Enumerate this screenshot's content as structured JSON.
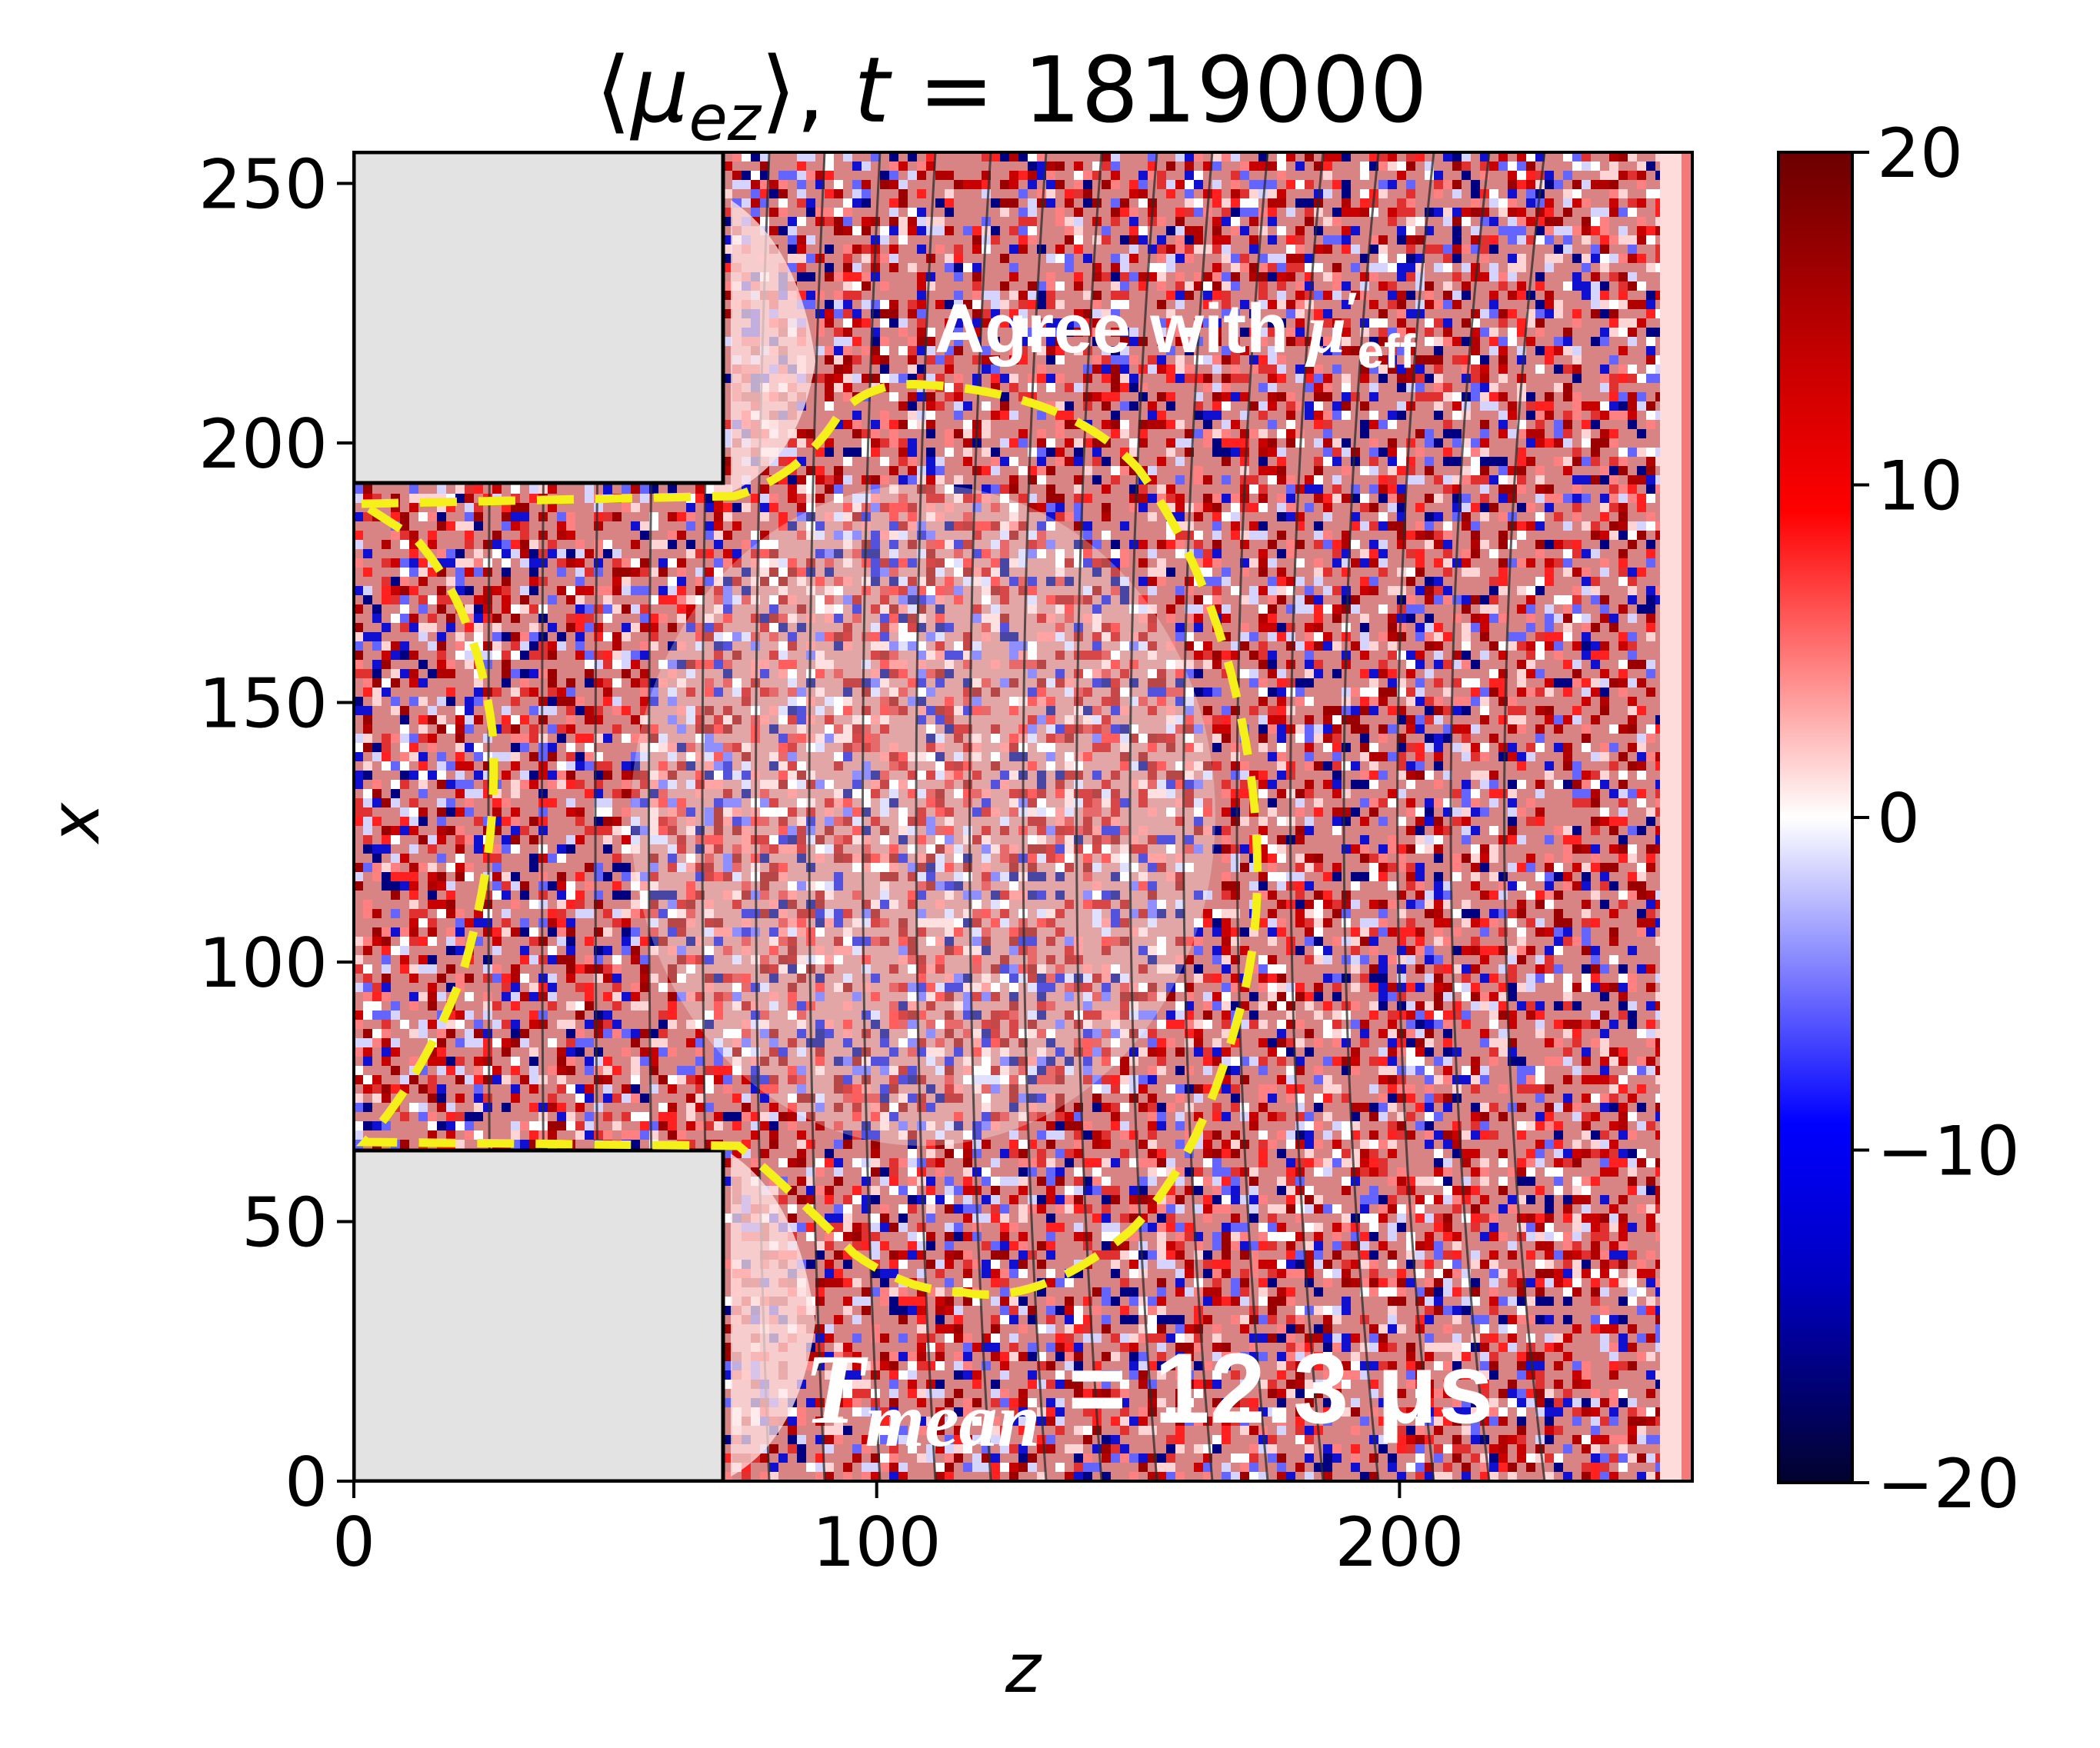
{
  "chart_data": {
    "type": "heatmap",
    "title": "⟨μez⟩, t = 1819000",
    "title_parts": {
      "open": "⟨",
      "mu": "μ",
      "sub": "ez",
      "close": "⟩, ",
      "t": "t",
      "eq": " = 1819000"
    },
    "xlabel": "z",
    "ylabel": "x",
    "xlim": [
      0,
      256
    ],
    "ylim": [
      0,
      256
    ],
    "xticks": [
      0,
      100,
      200
    ],
    "yticks": [
      0,
      50,
      100,
      150,
      200,
      250
    ],
    "colorbar": {
      "cmap": "seismic",
      "vmin": -20,
      "vmax": 20,
      "ticks": [
        20,
        10,
        0,
        -10,
        -20
      ],
      "tick_labels": [
        "20",
        "10",
        "0",
        "−10",
        "−20"
      ]
    },
    "electrodes": [
      {
        "name": "upper",
        "z_range": [
          0,
          70
        ],
        "x_range": [
          192,
          256
        ]
      },
      {
        "name": "lower",
        "z_range": [
          0,
          70
        ],
        "x_range": [
          0,
          64
        ]
      }
    ],
    "annotations": {
      "agree": {
        "text": "Agree with ",
        "mu": "μ",
        "prime": "′",
        "sub": "eff"
      },
      "tmean": {
        "t": "T",
        "sub": "mean",
        "eq": " = ",
        "value": "12.3 μs"
      }
    }
  },
  "colors": {
    "positive": "#8b0000",
    "negative": "#0a0a5a",
    "neutral": "#ffffff",
    "electrode": "#e3e3e3",
    "region_outline": "#f5ef1a",
    "field_lines": "#2b2b2b"
  }
}
